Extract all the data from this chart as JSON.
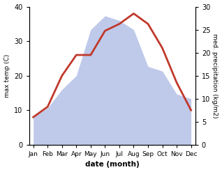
{
  "months": [
    "Jan",
    "Feb",
    "Mar",
    "Apr",
    "May",
    "Jun",
    "Jul",
    "Aug",
    "Sep",
    "Oct",
    "Nov",
    "Dec"
  ],
  "temperature": [
    8,
    11,
    20,
    26,
    26,
    33,
    35,
    38,
    35,
    28,
    18,
    10
  ],
  "precipitation": [
    6,
    8,
    12,
    15,
    25,
    28,
    27,
    25,
    17,
    16,
    11,
    10
  ],
  "temp_color": "#c0392b",
  "precip_fill_color": "#b8c4e8",
  "temp_ylim": [
    0,
    40
  ],
  "precip_ylim": [
    0,
    30
  ],
  "xlabel": "date (month)",
  "ylabel_left": "max temp (C)",
  "ylabel_right": "med. precipitation (kg/m2)",
  "temp_linewidth": 2.0,
  "background_color": "#ffffff"
}
